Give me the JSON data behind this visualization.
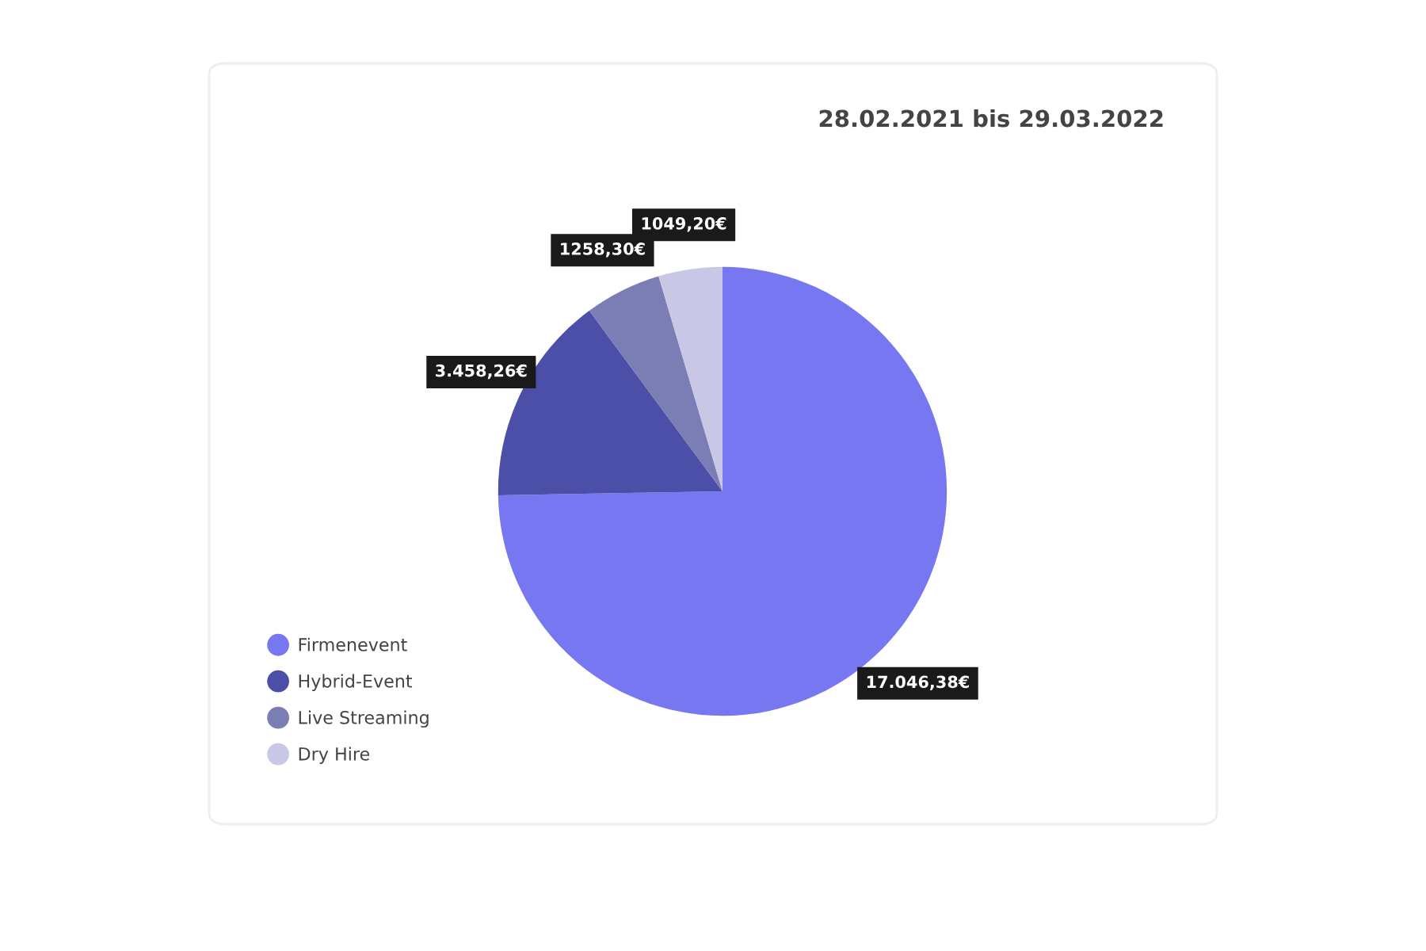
{
  "chart_data": {
    "type": "pie",
    "title": "28.02.2021 bis 29.03.2022",
    "categories": [
      "Firmenevent",
      "Hybrid-Event",
      "Live Streaming",
      "Dry Hire"
    ],
    "values": [
      17046.38,
      3458.26,
      1258.3,
      1049.2
    ],
    "value_labels": [
      "17.046,38€",
      "3.458,26€",
      "1258,30€",
      "1049,20€"
    ],
    "colors": [
      "#7777f2",
      "#4b4fa8",
      "#7b7db5",
      "#c8c8e6"
    ],
    "legend": "bottom left"
  }
}
